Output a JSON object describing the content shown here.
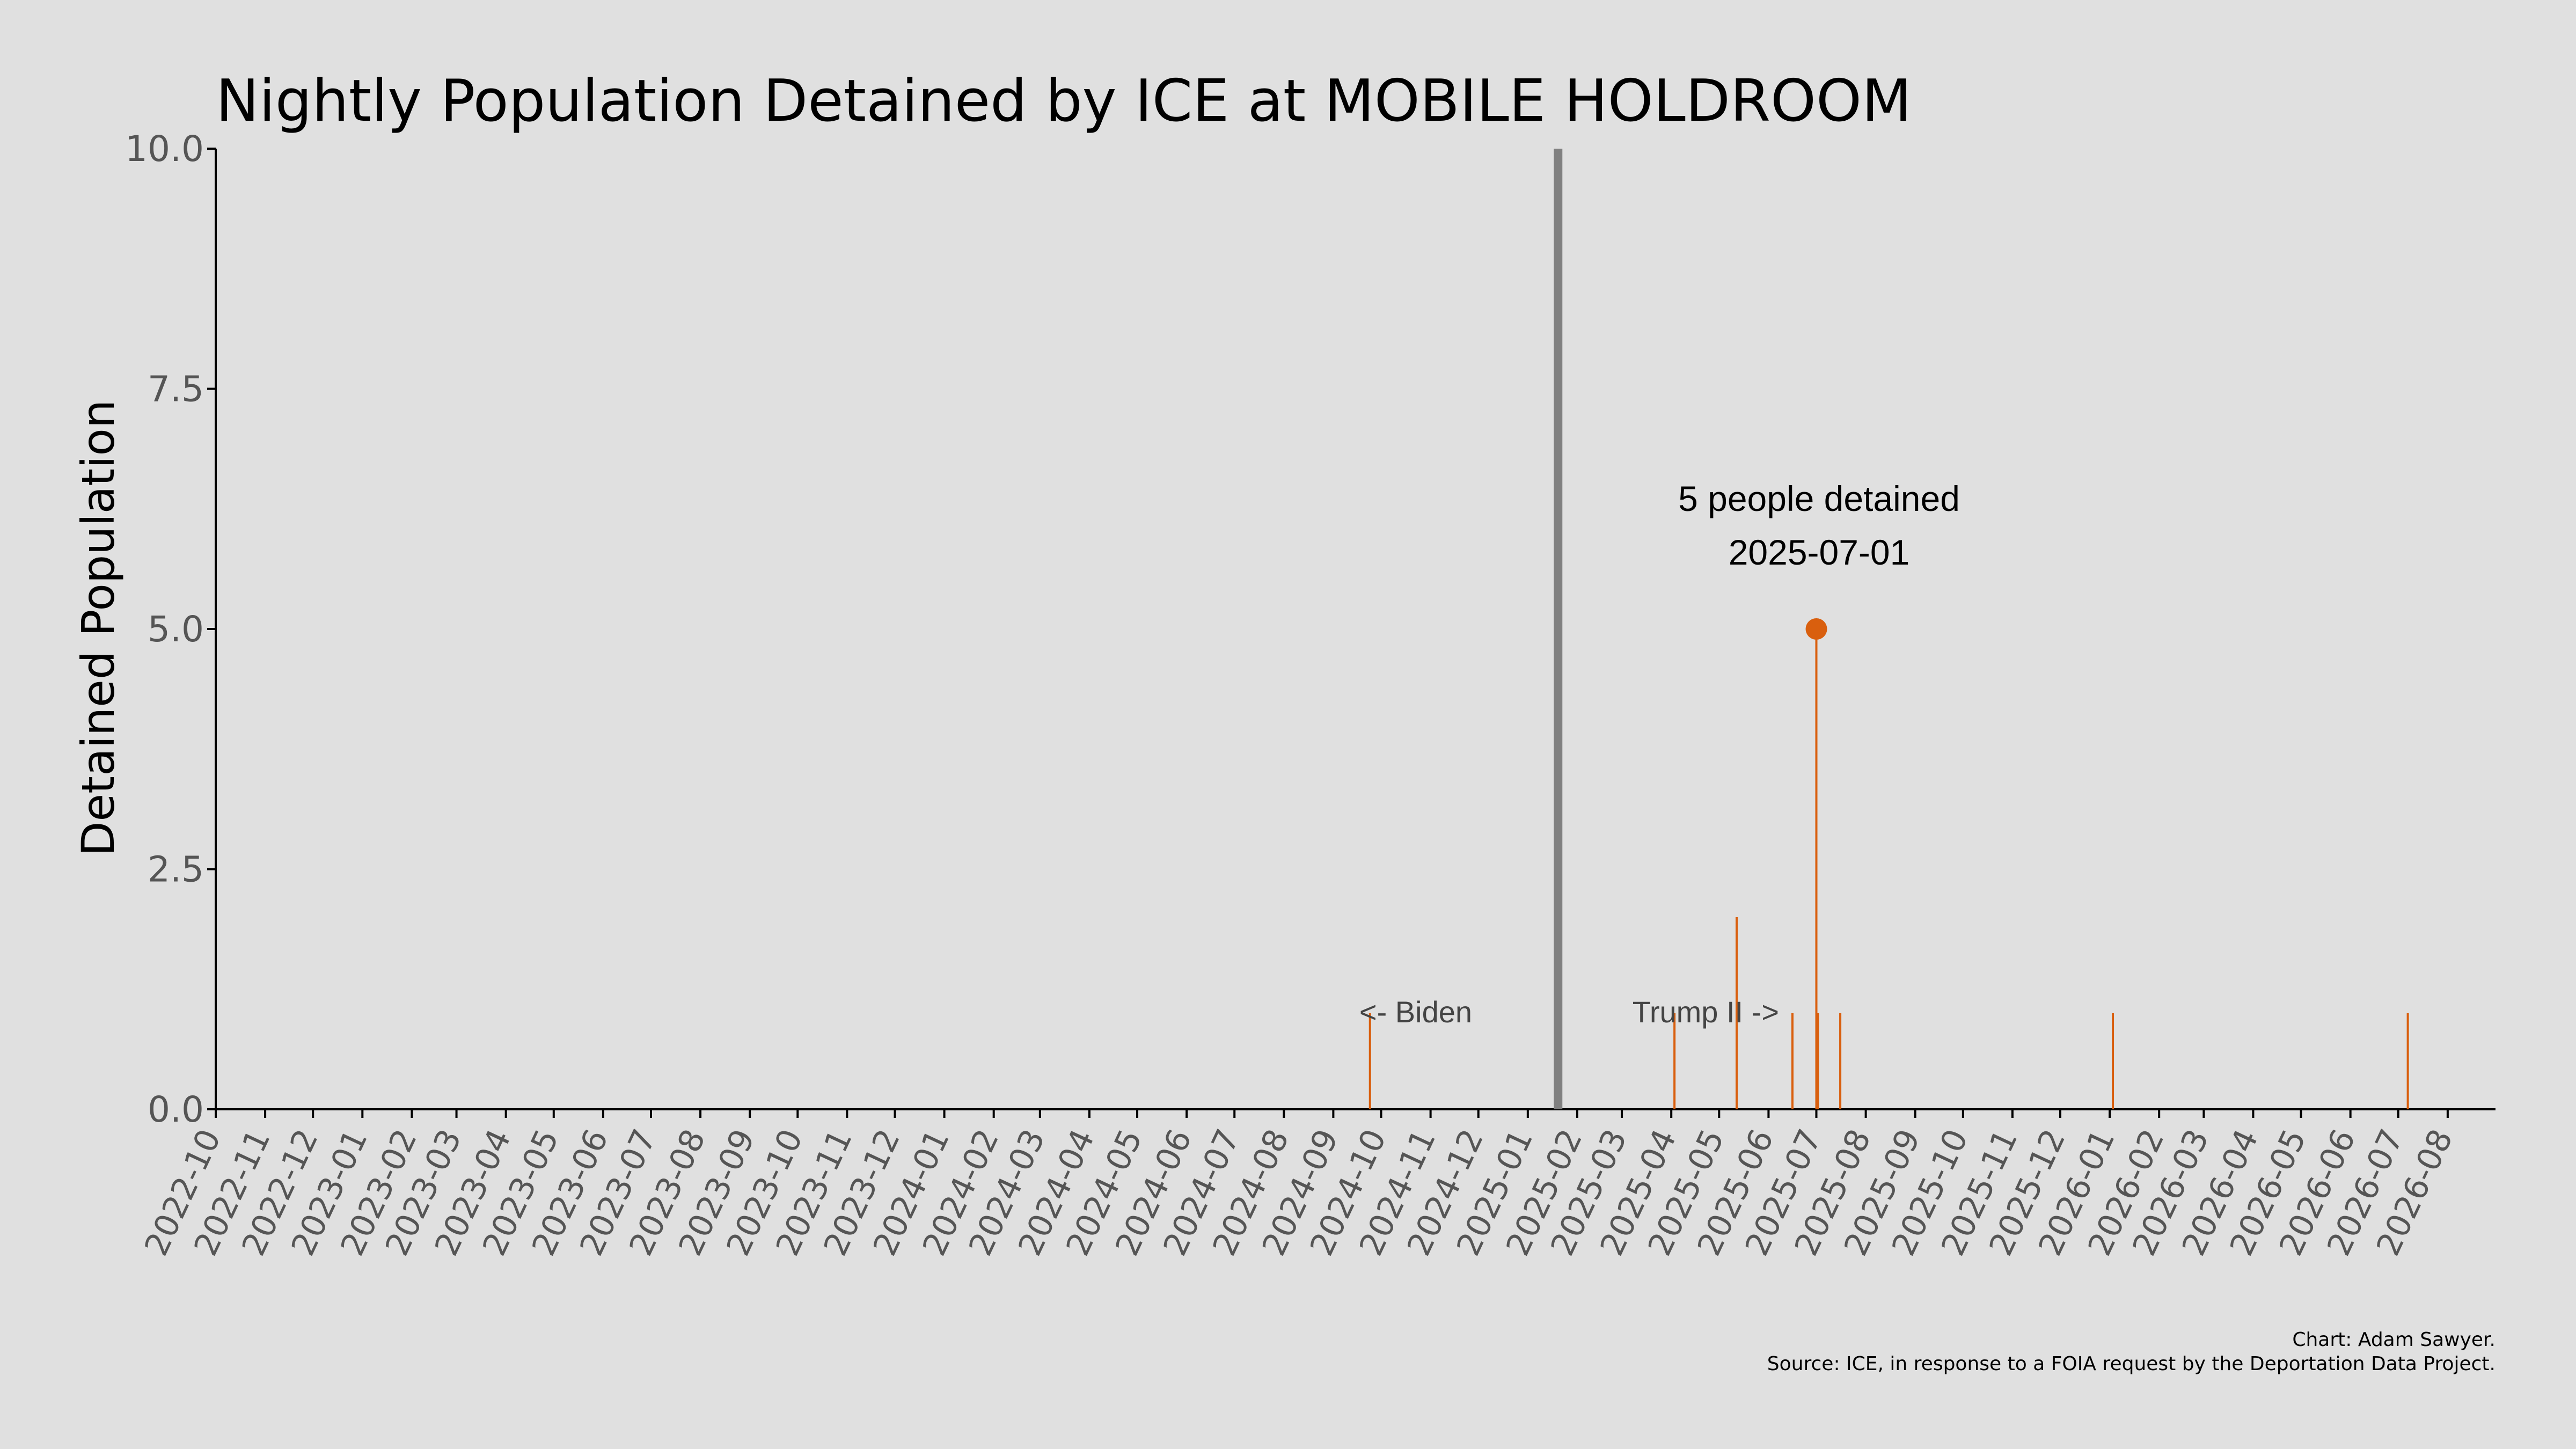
{
  "chart_data": {
    "type": "bar",
    "title": "Nightly Population Detained by ICE at MOBILE HOLDROOM",
    "xlabel": "",
    "ylabel": "Detained Population",
    "ylim": [
      0,
      10
    ],
    "yticks": [
      "0.0",
      "2.5",
      "5.0",
      "7.5",
      "10.0"
    ],
    "xlim": [
      "2022-10-01",
      "2026-08-31"
    ],
    "xticks": [
      "2022-10",
      "2022-11",
      "2022-12",
      "2023-01",
      "2023-02",
      "2023-03",
      "2023-04",
      "2023-05",
      "2023-06",
      "2023-07",
      "2023-08",
      "2023-09",
      "2023-10",
      "2023-11",
      "2023-12",
      "2024-01",
      "2024-02",
      "2024-03",
      "2024-04",
      "2024-05",
      "2024-06",
      "2024-07",
      "2024-08",
      "2024-09",
      "2024-10",
      "2024-11",
      "2024-12",
      "2025-01",
      "2025-02",
      "2025-03",
      "2025-04",
      "2025-05",
      "2025-06",
      "2025-07",
      "2025-08",
      "2025-09",
      "2025-10",
      "2025-11",
      "2025-12",
      "2026-01",
      "2026-02",
      "2026-03",
      "2026-04",
      "2026-05",
      "2026-06",
      "2026-07",
      "2026-08"
    ],
    "series": [
      {
        "points": [
          {
            "x": "2024-09-24",
            "y": 1
          },
          {
            "x": "2025-04-03",
            "y": 1
          },
          {
            "x": "2025-05-12",
            "y": 2
          },
          {
            "x": "2025-06-16",
            "y": 1
          },
          {
            "x": "2025-07-01",
            "y": 5
          },
          {
            "x": "2025-07-02",
            "y": 1
          },
          {
            "x": "2025-07-16",
            "y": 1
          },
          {
            "x": "2026-01-03",
            "y": 1
          },
          {
            "x": "2026-07-07",
            "y": 1
          }
        ]
      }
    ],
    "bar_color": "#d95f0e",
    "highlight": {
      "x": "2025-07-01",
      "y": 5,
      "line1": "5 people detained",
      "line2": "2025-07-01"
    },
    "divider": {
      "x": "2025-01-20",
      "color": "#808080"
    },
    "era_left": "<- Biden",
    "era_right": "Trump II ->",
    "grid": false,
    "credit_line1": "Chart: Adam Sawyer.",
    "credit_line2": "Source: ICE, in response to a FOIA request by the Deportation Data Project."
  }
}
